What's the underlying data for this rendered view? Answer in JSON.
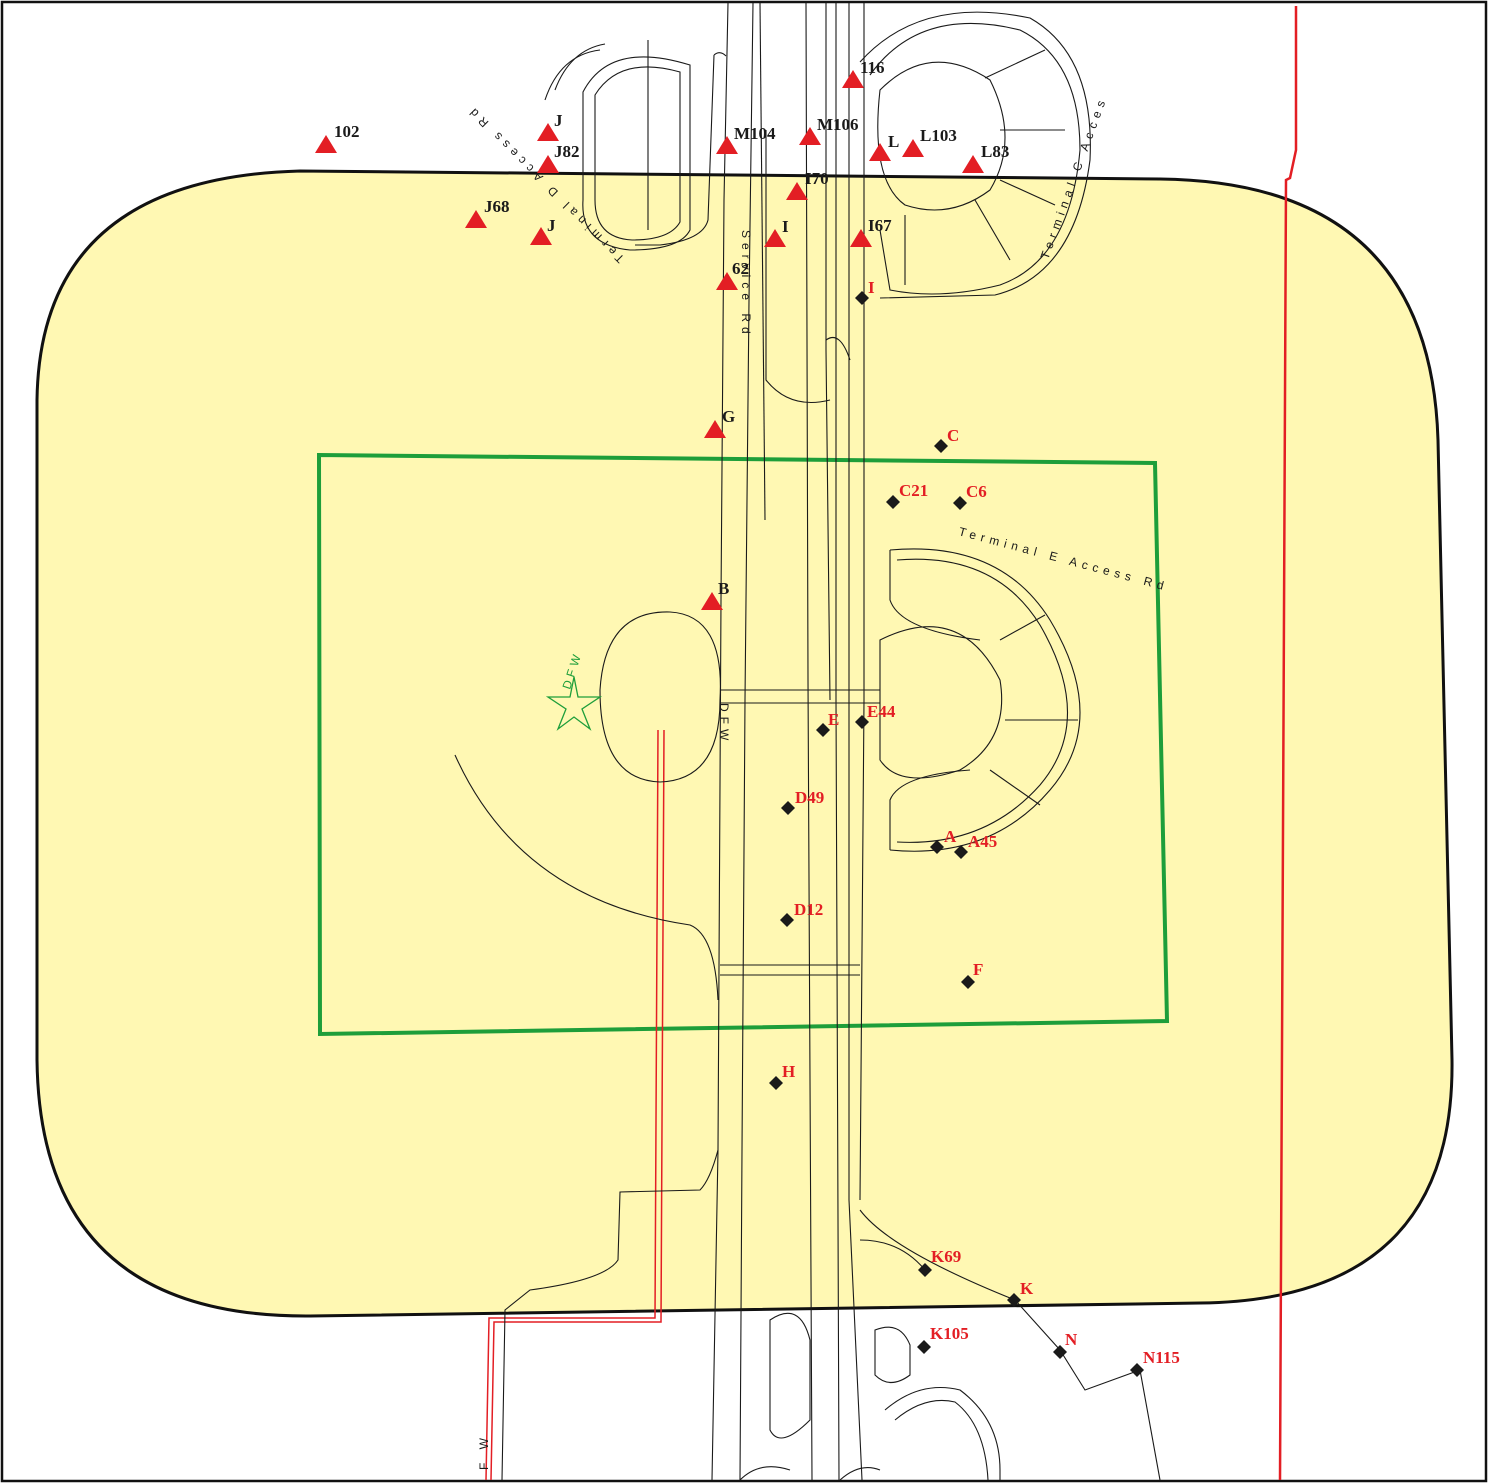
{
  "colors": {
    "buffer_fill": "#fff8b3",
    "buffer_stroke": "#111111",
    "green_box": "#1e9e3a",
    "red_line": "#e31e24",
    "triangle": "#e31e24",
    "diamond": "#1a1a1a",
    "triangle_label": "#1a1a1a",
    "diamond_label": "#e31e24",
    "star": "#1e9e3a"
  },
  "icons": {
    "triangle_marker": "red-triangle-icon",
    "diamond_marker": "black-diamond-icon",
    "star_marker": "green-star-icon"
  },
  "road_labels": {
    "terminal_d_access_rd": "Terminal D Access Rd",
    "service_rd": "Service Rd",
    "terminal_e_access_rd": "Terminal E Access Rd",
    "terminal_c_access": "Terminal C Acces",
    "dfw_inner": "DFW",
    "dfw_star": "DFW",
    "fw": "F W"
  },
  "triangle_markers": [
    {
      "id": "t-102",
      "label": "102"
    },
    {
      "id": "t-j-1",
      "label": "J"
    },
    {
      "id": "t-j82",
      "label": "J82"
    },
    {
      "id": "t-j68",
      "label": "J68"
    },
    {
      "id": "t-j-2",
      "label": "J"
    },
    {
      "id": "t-m104",
      "label": "M104"
    },
    {
      "id": "t-62",
      "label": "62"
    },
    {
      "id": "t-116",
      "label": "116"
    },
    {
      "id": "t-m106",
      "label": "M106"
    },
    {
      "id": "t-i70",
      "label": "I70"
    },
    {
      "id": "t-i",
      "label": "I"
    },
    {
      "id": "t-l",
      "label": "L"
    },
    {
      "id": "t-l103",
      "label": "L103"
    },
    {
      "id": "t-l83",
      "label": "L83"
    },
    {
      "id": "t-i67",
      "label": "I67"
    },
    {
      "id": "t-g",
      "label": "G"
    },
    {
      "id": "t-b",
      "label": "B"
    }
  ],
  "diamond_markers": [
    {
      "id": "d-i",
      "label": "I"
    },
    {
      "id": "d-c",
      "label": "C"
    },
    {
      "id": "d-c21",
      "label": "C21"
    },
    {
      "id": "d-c6",
      "label": "C6"
    },
    {
      "id": "d-e",
      "label": "E"
    },
    {
      "id": "d-e44",
      "label": "E44"
    },
    {
      "id": "d-d49",
      "label": "D49"
    },
    {
      "id": "d-a",
      "label": "A"
    },
    {
      "id": "d-a45",
      "label": "A45"
    },
    {
      "id": "d-d12",
      "label": "D12"
    },
    {
      "id": "d-f",
      "label": "F"
    },
    {
      "id": "d-h",
      "label": "H"
    },
    {
      "id": "d-k69",
      "label": "K69"
    },
    {
      "id": "d-k",
      "label": "K"
    },
    {
      "id": "d-k105",
      "label": "K105"
    },
    {
      "id": "d-n",
      "label": "N"
    },
    {
      "id": "d-n115",
      "label": "N115"
    }
  ]
}
